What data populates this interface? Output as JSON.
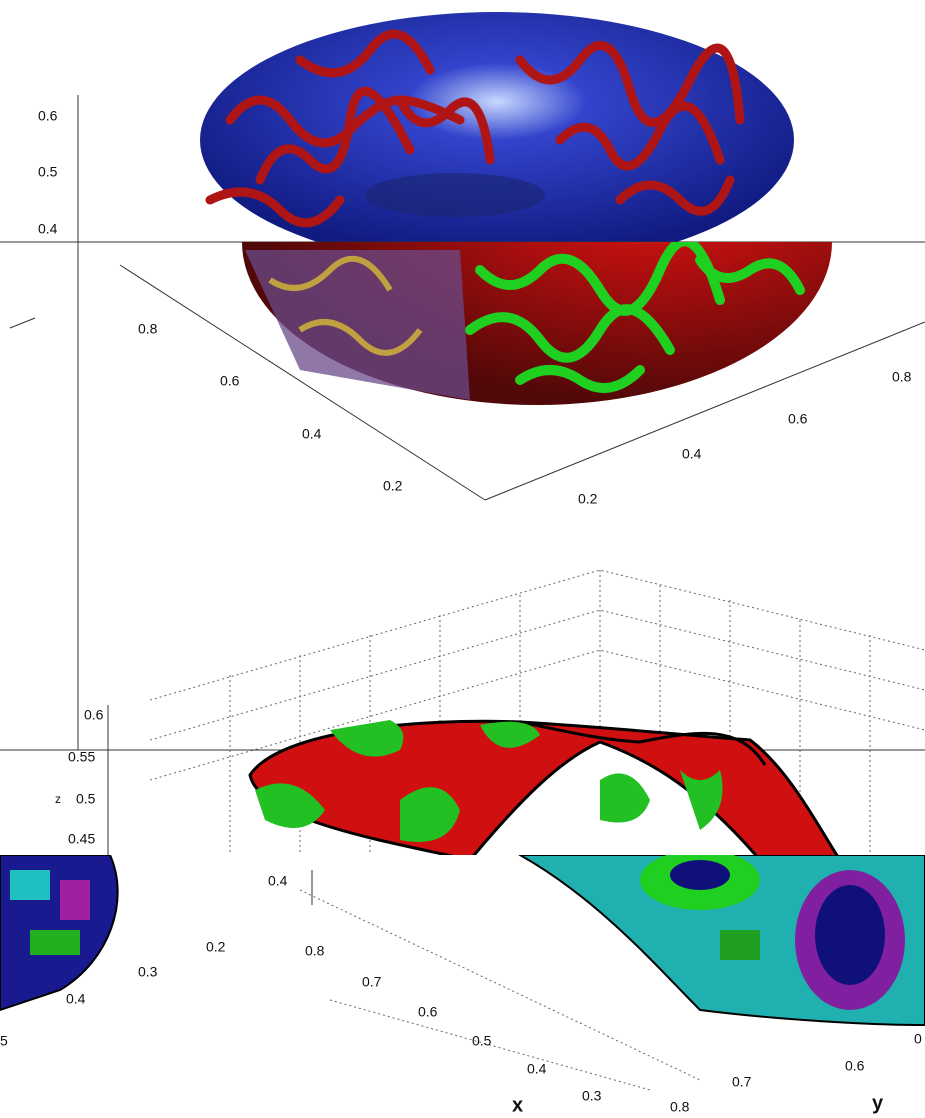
{
  "top_panel": {
    "z_ticks": [
      "0.6",
      "0.5",
      "0.4"
    ],
    "left_axis_ticks": [
      "0.8",
      "0.6",
      "0.4",
      "0.2"
    ],
    "right_axis_ticks": [
      "0.2",
      "0.4",
      "0.6",
      "0.8"
    ]
  },
  "bottom_panel": {
    "z_ticks": [
      "0.6",
      "0.55",
      "0.5",
      "0.45",
      "0.4"
    ],
    "z_label": "z",
    "x_ticks": [
      "0.8",
      "0.7",
      "0.6",
      "0.5",
      "0.4",
      "0.3"
    ],
    "x_label": "x",
    "y_ticks": [
      "0.8",
      "0.7",
      "0.6",
      "0"
    ],
    "y_label": "y"
  },
  "fragment_panel": {
    "ticks": [
      "0.2",
      "0.3",
      "0.4",
      "5"
    ]
  }
}
